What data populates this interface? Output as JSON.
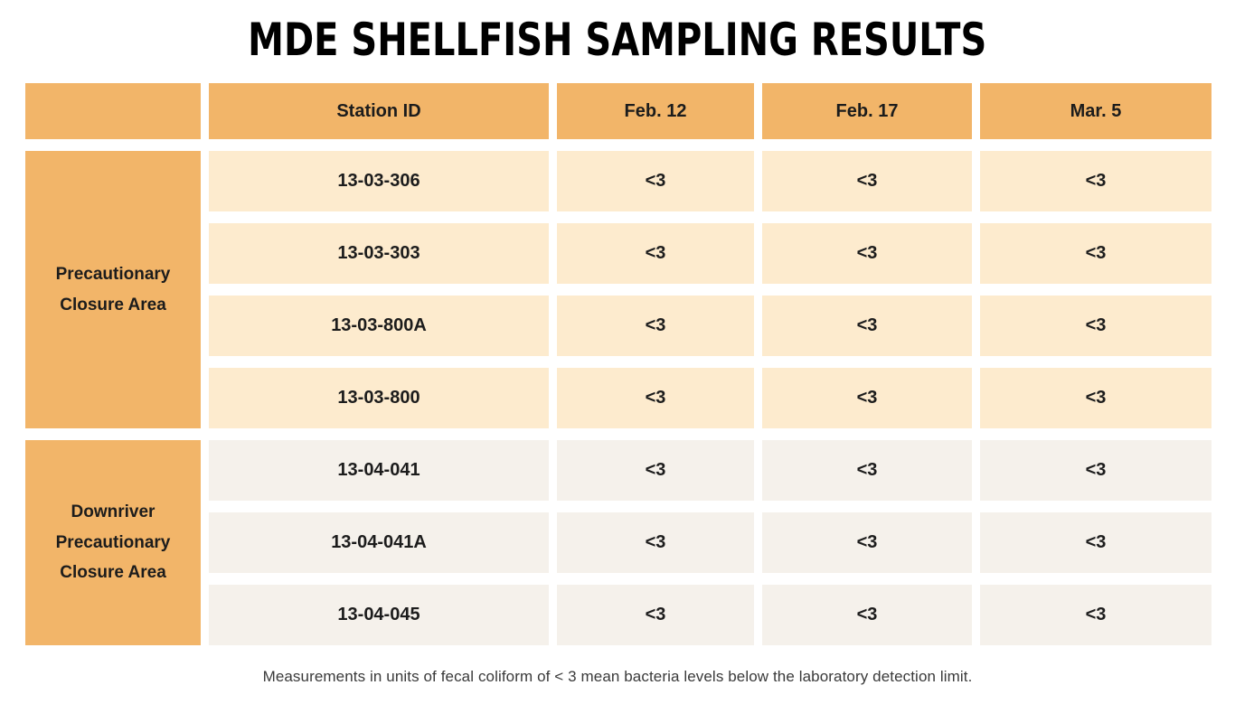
{
  "chart_data": {
    "type": "table",
    "title": "MDE SHELLFISH SAMPLING RESULTS",
    "columns": [
      "Station ID",
      "Feb. 12",
      "Feb. 17",
      "Mar. 5"
    ],
    "groups": [
      {
        "label": "Precautionary Closure Area",
        "rows": [
          {
            "station": "13-03-306",
            "values": [
              "<3",
              "<3",
              "<3"
            ]
          },
          {
            "station": "13-03-303",
            "values": [
              "<3",
              "<3",
              "<3"
            ]
          },
          {
            "station": "13-03-800A",
            "values": [
              "<3",
              "<3",
              "<3"
            ]
          },
          {
            "station": "13-03-800",
            "values": [
              "<3",
              "<3",
              "<3"
            ]
          }
        ]
      },
      {
        "label": "Downriver Precautionary Closure Area",
        "rows": [
          {
            "station": "13-04-041",
            "values": [
              "<3",
              "<3",
              "<3"
            ]
          },
          {
            "station": "13-04-041A",
            "values": [
              "<3",
              "<3",
              "<3"
            ]
          },
          {
            "station": "13-04-045",
            "values": [
              "<3",
              "<3",
              "<3"
            ]
          }
        ]
      }
    ],
    "footnote": "Measurements in units of fecal coliform of < 3 mean bacteria levels below the laboratory detection limit.",
    "layout": {
      "legend": "none",
      "grid": "off"
    }
  },
  "colors": {
    "header_bg": "#f2b569",
    "group_label_bg": "#f2b569",
    "group1_row_bg": "#fdebce",
    "group2_row_bg": "#f5f1eb",
    "title_text": "#000000",
    "cell_text": "#1c1c1c",
    "footnote_text": "#3a3a3a",
    "page_bg": "#ffffff"
  }
}
